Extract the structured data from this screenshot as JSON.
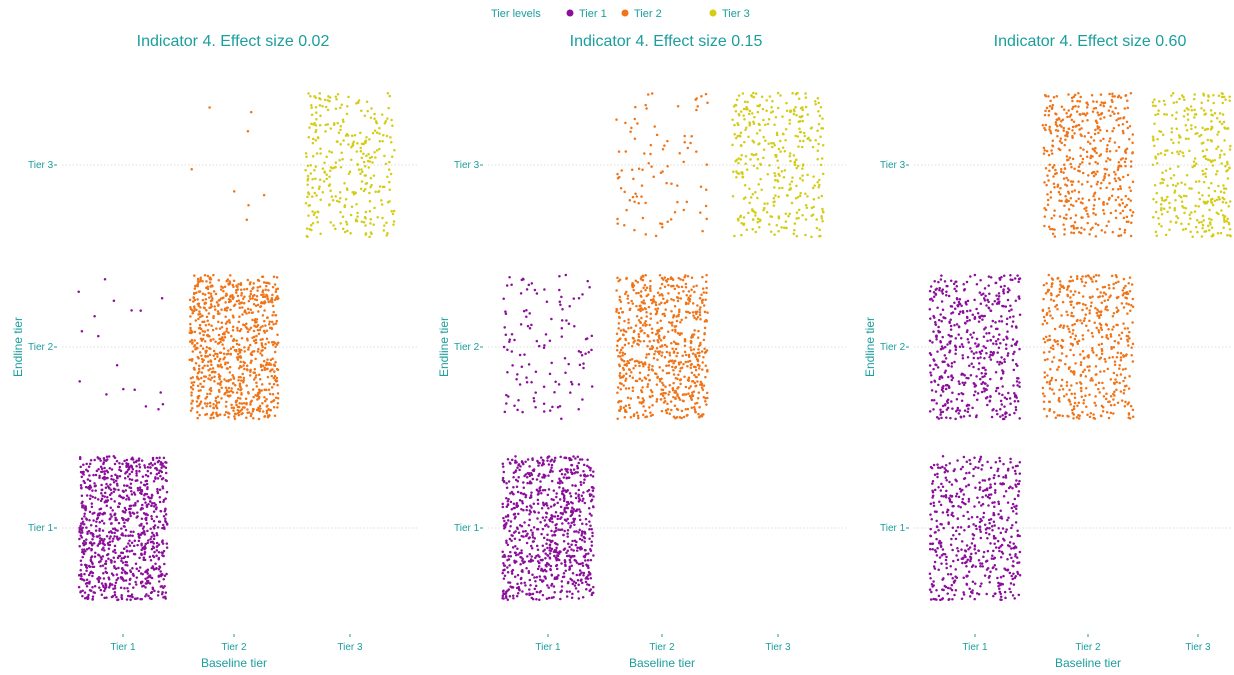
{
  "colors": {
    "text": "#1a9e9e",
    "grid": "#d2d2d2",
    "tier_1": "#8b0f9b",
    "tier_2": "#f07418",
    "tier_3": "#d4cc15"
  },
  "legend": {
    "title": "Tier levels",
    "items": [
      "Tier 1",
      "Tier 2",
      "Tier 3"
    ]
  },
  "chart_data": [
    {
      "type": "scatter",
      "title": "Indicator 4. Effect size 0.02",
      "xlabel": "Baseline tier",
      "ylabel": "Endline tier",
      "categories": [
        "Tier 1",
        "Tier 2",
        "Tier 3"
      ],
      "jitter": 0.4,
      "cells": [
        {
          "baseline": "Tier 1",
          "endline": "Tier 1",
          "count": 900,
          "series": "Tier 1"
        },
        {
          "baseline": "Tier 1",
          "endline": "Tier 2",
          "count": 18,
          "series": "Tier 1"
        },
        {
          "baseline": "Tier 2",
          "endline": "Tier 2",
          "count": 850,
          "series": "Tier 2"
        },
        {
          "baseline": "Tier 2",
          "endline": "Tier 3",
          "count": 8,
          "series": "Tier 2"
        },
        {
          "baseline": "Tier 3",
          "endline": "Tier 3",
          "count": 320,
          "series": "Tier 3"
        }
      ]
    },
    {
      "type": "scatter",
      "title": "Indicator 4. Effect size 0.15",
      "xlabel": "Baseline tier",
      "ylabel": "Endline tier",
      "categories": [
        "Tier 1",
        "Tier 2",
        "Tier 3"
      ],
      "jitter": 0.4,
      "cells": [
        {
          "baseline": "Tier 1",
          "endline": "Tier 1",
          "count": 820,
          "series": "Tier 1"
        },
        {
          "baseline": "Tier 1",
          "endline": "Tier 2",
          "count": 120,
          "series": "Tier 1"
        },
        {
          "baseline": "Tier 2",
          "endline": "Tier 2",
          "count": 700,
          "series": "Tier 2"
        },
        {
          "baseline": "Tier 2",
          "endline": "Tier 3",
          "count": 90,
          "series": "Tier 2"
        },
        {
          "baseline": "Tier 3",
          "endline": "Tier 3",
          "count": 360,
          "series": "Tier 3"
        }
      ]
    },
    {
      "type": "scatter",
      "title": "Indicator 4. Effect size 0.60",
      "xlabel": "Baseline tier",
      "ylabel": "Endline tier",
      "categories": [
        "Tier 1",
        "Tier 2",
        "Tier 3"
      ],
      "jitter": 0.4,
      "cells": [
        {
          "baseline": "Tier 1",
          "endline": "Tier 1",
          "count": 520,
          "series": "Tier 1"
        },
        {
          "baseline": "Tier 1",
          "endline": "Tier 2",
          "count": 520,
          "series": "Tier 1"
        },
        {
          "baseline": "Tier 2",
          "endline": "Tier 2",
          "count": 500,
          "series": "Tier 2"
        },
        {
          "baseline": "Tier 2",
          "endline": "Tier 3",
          "count": 460,
          "series": "Tier 2"
        },
        {
          "baseline": "Tier 3",
          "endline": "Tier 3",
          "count": 330,
          "series": "Tier 3"
        }
      ]
    }
  ]
}
